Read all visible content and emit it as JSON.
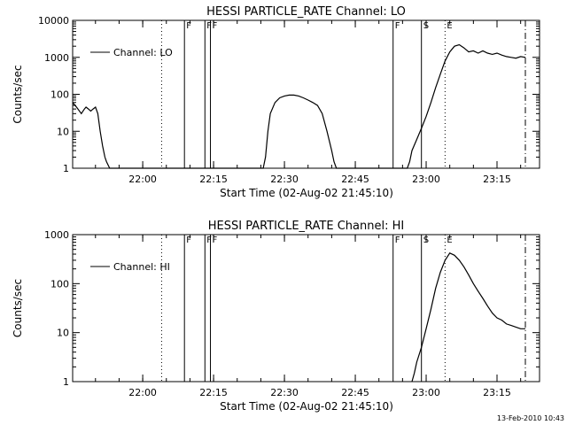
{
  "footer": {
    "timestamp": "13-Feb-2010 10:43"
  },
  "chart_data": [
    {
      "type": "line",
      "title": "HESSI PARTICLE_RATE Channel: LO",
      "xlabel": "Start Time (02-Aug-02 21:45:10)",
      "ylabel": "Counts/sec",
      "y_scale": "log",
      "ylim": [
        1,
        10000
      ],
      "xlim": [
        "21:45:10",
        "23:24:00"
      ],
      "x_ticks": [
        "22:00",
        "22:15",
        "22:30",
        "22:45",
        "23:00",
        "23:15"
      ],
      "y_ticks": [
        "1",
        "10",
        "100",
        "1000",
        "10000"
      ],
      "legend": {
        "position": "top-left",
        "entries": [
          "Channel: LO"
        ]
      },
      "flag_markers": [
        {
          "label": "F",
          "time": "22:08:50",
          "style": "solid"
        },
        {
          "label": "F",
          "time": "22:13:10",
          "style": "solid"
        },
        {
          "label": "F",
          "time": "22:14:20",
          "style": "solid"
        },
        {
          "label": "F",
          "time": "22:53:00",
          "style": "solid"
        },
        {
          "label": "S",
          "time": "22:59:00",
          "style": "solid"
        },
        {
          "label": "E",
          "time": "23:04:00",
          "style": "dotted"
        }
      ],
      "other_markers": [
        {
          "time": "22:04:00",
          "style": "dotted"
        },
        {
          "time": "23:21:00",
          "style": "dash-dot"
        }
      ],
      "series": [
        {
          "name": "Channel: LO",
          "x": [
            "21:45:10",
            "21:46:00",
            "21:47:00",
            "21:47:40",
            "21:48:00",
            "21:48:30",
            "21:49:00",
            "21:49:30",
            "21:50:00",
            "21:50:30",
            "21:51:00",
            "21:51:30",
            "21:52:00",
            "21:52:20",
            "21:53:00",
            "22:25:30",
            "22:26:00",
            "22:26:30",
            "22:27:00",
            "22:28:00",
            "22:29:00",
            "22:30:00",
            "22:31:00",
            "22:32:00",
            "22:33:00",
            "22:34:00",
            "22:35:00",
            "22:36:00",
            "22:37:00",
            "22:38:00",
            "22:39:00",
            "22:40:00",
            "22:40:30",
            "22:41:00",
            "22:56:00",
            "22:56:30",
            "22:57:00",
            "22:58:00",
            "22:59:00",
            "23:00:00",
            "23:01:00",
            "23:02:00",
            "23:03:00",
            "23:04:00",
            "23:05:00",
            "23:06:00",
            "23:07:00",
            "23:08:00",
            "23:09:00",
            "23:10:00",
            "23:11:00",
            "23:12:00",
            "23:13:00",
            "23:14:00",
            "23:15:00",
            "23:16:00",
            "23:17:00",
            "23:18:00",
            "23:19:00",
            "23:20:00",
            "23:21:00"
          ],
          "y": [
            60,
            45,
            30,
            40,
            45,
            40,
            35,
            40,
            45,
            30,
            10,
            4,
            2,
            1.5,
            1,
            1,
            2,
            10,
            30,
            60,
            80,
            90,
            95,
            95,
            90,
            80,
            70,
            60,
            50,
            30,
            10,
            3,
            1.5,
            1,
            1,
            1.5,
            3,
            6,
            12,
            25,
            60,
            150,
            350,
            800,
            1400,
            2000,
            2200,
            1800,
            1400,
            1500,
            1300,
            1500,
            1300,
            1200,
            1300,
            1150,
            1050,
            1000,
            950,
            1050,
            1000
          ]
        }
      ]
    },
    {
      "type": "line",
      "title": "HESSI PARTICLE_RATE Channel: HI",
      "xlabel": "Start Time (02-Aug-02 21:45:10)",
      "ylabel": "Counts/sec",
      "y_scale": "log",
      "ylim": [
        1,
        1000
      ],
      "xlim": [
        "21:45:10",
        "23:24:00"
      ],
      "x_ticks": [
        "22:00",
        "22:15",
        "22:30",
        "22:45",
        "23:00",
        "23:15"
      ],
      "y_ticks": [
        "1",
        "10",
        "100",
        "1000"
      ],
      "legend": {
        "position": "top-left",
        "entries": [
          "Channel: HI"
        ]
      },
      "flag_markers": [
        {
          "label": "F",
          "time": "22:08:50",
          "style": "solid"
        },
        {
          "label": "F",
          "time": "22:13:10",
          "style": "solid"
        },
        {
          "label": "F",
          "time": "22:14:20",
          "style": "solid"
        },
        {
          "label": "F",
          "time": "22:53:00",
          "style": "solid"
        },
        {
          "label": "S",
          "time": "22:59:00",
          "style": "solid"
        },
        {
          "label": "E",
          "time": "23:04:00",
          "style": "dotted"
        }
      ],
      "other_markers": [
        {
          "time": "22:04:00",
          "style": "dotted"
        },
        {
          "time": "23:21:00",
          "style": "dash-dot"
        }
      ],
      "series": [
        {
          "name": "Channel: HI",
          "x": [
            "22:57:00",
            "22:57:30",
            "22:58:00",
            "22:59:00",
            "23:00:00",
            "23:01:00",
            "23:02:00",
            "23:03:00",
            "23:04:00",
            "23:05:00",
            "23:06:00",
            "23:07:00",
            "23:08:00",
            "23:09:00",
            "23:10:00",
            "23:11:00",
            "23:12:00",
            "23:13:00",
            "23:14:00",
            "23:15:00",
            "23:16:00",
            "23:17:00",
            "23:18:00",
            "23:19:00",
            "23:20:00",
            "23:21:00"
          ],
          "y": [
            1,
            1.5,
            2.5,
            5,
            12,
            30,
            80,
            170,
            300,
            420,
            380,
            300,
            220,
            150,
            100,
            70,
            50,
            35,
            25,
            20,
            18,
            15,
            14,
            13,
            12,
            12
          ]
        }
      ]
    }
  ]
}
